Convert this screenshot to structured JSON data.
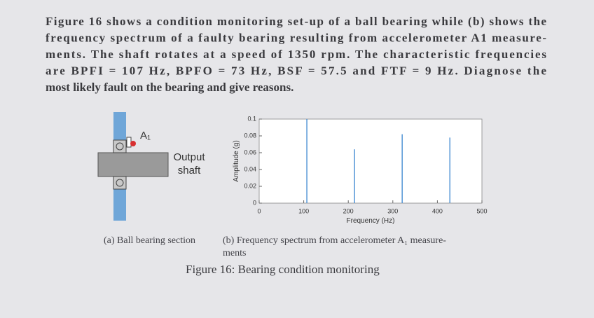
{
  "text": {
    "paragraph_lines": [
      "Figure 16 shows a condition monitoring set-up of a ball bearing while (b) shows the",
      "frequency spectrum of a faulty bearing resulting from accelerometer A1 measure-",
      "ments. The shaft rotates at a speed of 1350 rpm. The characteristic frequencies",
      "are BPFI = 107 Hz, BPFO = 73 Hz, BSF = 57.5 and FTF = 9 Hz. Diagnose the",
      "most likely fault on the bearing and give reasons."
    ]
  },
  "diagram": {
    "sensor_label": "A₁",
    "shaft_label": [
      "Output",
      "shaft"
    ]
  },
  "figure": {
    "subfigures": [
      {
        "caption_lines": [
          "(a) Ball bearing section"
        ]
      },
      {
        "caption_lines": [
          "(b) Frequency spectrum from accelerometer A₁ measure-",
          "ments"
        ]
      }
    ],
    "caption": "Figure 16: Bearing condition monitoring"
  },
  "chart_data": {
    "type": "stem",
    "x_label": "Frequency (Hz)",
    "y_label": "Amplitude (g)",
    "x": [
      107,
      214,
      321,
      428
    ],
    "values": [
      0.1,
      0.064,
      0.082,
      0.078
    ],
    "color": "#3a86d0",
    "xlim": [
      0,
      500
    ],
    "xticks": [
      0,
      100,
      200,
      300,
      400,
      500
    ],
    "ylim": [
      0,
      0.1
    ],
    "yticks": [
      0,
      0.02,
      0.04,
      0.06,
      0.08,
      0.1
    ]
  }
}
